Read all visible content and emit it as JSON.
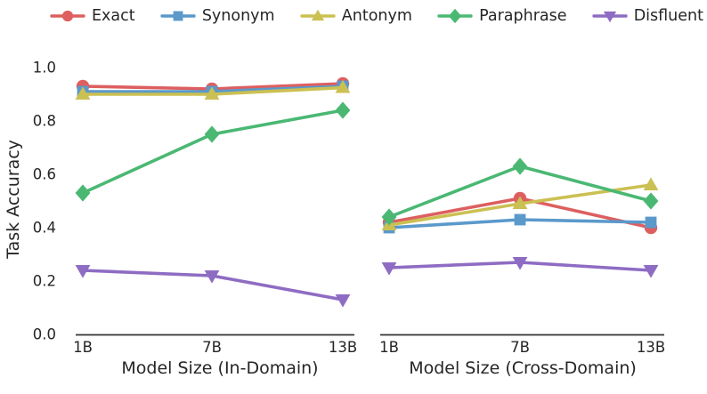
{
  "legend": {
    "items": [
      {
        "label": "Exact",
        "marker": "circle",
        "color": "#dd5f5f"
      },
      {
        "label": "Synonym",
        "marker": "square",
        "color": "#5b99cb"
      },
      {
        "label": "Antonym",
        "marker": "triangle-up",
        "color": "#cbc052"
      },
      {
        "label": "Paraphrase",
        "marker": "diamond",
        "color": "#4ab873"
      },
      {
        "label": "Disfluent",
        "marker": "triangle-down",
        "color": "#8e6cc3"
      }
    ]
  },
  "axis": {
    "text_color": "#262626",
    "spine_color": "#333333"
  },
  "chart_data": [
    {
      "type": "line",
      "title": "",
      "xlabel": "Model Size (In-Domain)",
      "ylabel": "Task Accuracy",
      "categories": [
        "1B",
        "7B",
        "13B"
      ],
      "ylim": [
        0.0,
        1.0
      ],
      "yticks": [
        0.0,
        0.2,
        0.4,
        0.6,
        0.8,
        1.0
      ],
      "ytick_labels": [
        "0.0",
        "0.2",
        "0.4",
        "0.6",
        "0.8",
        "1.0"
      ],
      "grid": false,
      "legend_position": "top",
      "series": [
        {
          "name": "Exact",
          "marker": "circle",
          "color": "#dd5f5f",
          "values": [
            0.93,
            0.92,
            0.94
          ]
        },
        {
          "name": "Synonym",
          "marker": "square",
          "color": "#5b99cb",
          "values": [
            0.91,
            0.91,
            0.93
          ]
        },
        {
          "name": "Antonym",
          "marker": "triangle-up",
          "color": "#cbc052",
          "values": [
            0.9,
            0.9,
            0.925
          ]
        },
        {
          "name": "Paraphrase",
          "marker": "diamond",
          "color": "#4ab873",
          "values": [
            0.53,
            0.75,
            0.84
          ]
        },
        {
          "name": "Disfluent",
          "marker": "triangle-down",
          "color": "#8e6cc3",
          "values": [
            0.24,
            0.22,
            0.13
          ]
        }
      ]
    },
    {
      "type": "line",
      "title": "",
      "xlabel": "Model Size (Cross-Domain)",
      "ylabel": "",
      "categories": [
        "1B",
        "7B",
        "13B"
      ],
      "ylim": [
        0.0,
        1.0
      ],
      "yticks": [
        0.0,
        0.2,
        0.4,
        0.6,
        0.8,
        1.0
      ],
      "ytick_labels": [
        "0.0",
        "0.2",
        "0.4",
        "0.6",
        "0.8",
        "1.0"
      ],
      "grid": false,
      "legend_position": "top",
      "series": [
        {
          "name": "Exact",
          "marker": "circle",
          "color": "#dd5f5f",
          "values": [
            0.42,
            0.51,
            0.4
          ]
        },
        {
          "name": "Synonym",
          "marker": "square",
          "color": "#5b99cb",
          "values": [
            0.4,
            0.43,
            0.42
          ]
        },
        {
          "name": "Antonym",
          "marker": "triangle-up",
          "color": "#cbc052",
          "values": [
            0.41,
            0.49,
            0.56
          ]
        },
        {
          "name": "Paraphrase",
          "marker": "diamond",
          "color": "#4ab873",
          "values": [
            0.44,
            0.63,
            0.5
          ]
        },
        {
          "name": "Disfluent",
          "marker": "triangle-down",
          "color": "#8e6cc3",
          "values": [
            0.25,
            0.27,
            0.24
          ]
        }
      ]
    }
  ]
}
